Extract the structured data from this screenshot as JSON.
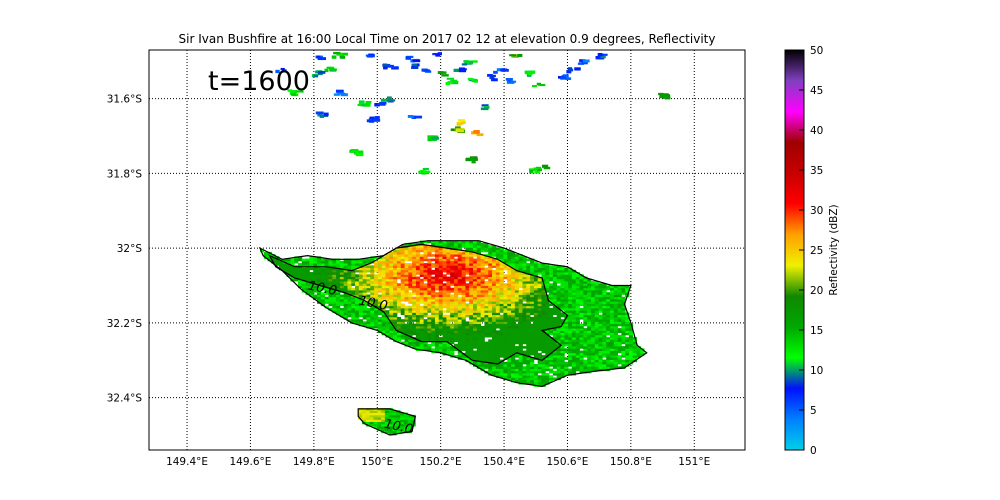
{
  "chart_data": {
    "type": "heatmap",
    "title": "Sir Ivan Bushfire at 16:00 Local Time on 2017 02 12 at elevation 0.9 degrees, Reflectivity",
    "annotation": "t=1600",
    "x_axis": {
      "range": [
        149.28,
        151.16
      ],
      "ticks": [
        149.4,
        149.6,
        149.8,
        150.0,
        150.2,
        150.4,
        150.6,
        150.8,
        151.0
      ],
      "tick_labels": [
        "149.4°E",
        "149.6°E",
        "149.8°E",
        "150°E",
        "150.2°E",
        "150.4°E",
        "150.6°E",
        "150.8°E",
        "151°E"
      ]
    },
    "y_axis": {
      "range": [
        -32.54,
        -31.47
      ],
      "ticks": [
        -31.6,
        -31.8,
        -32.0,
        -32.2,
        -32.4
      ],
      "tick_labels": [
        "31.6°S",
        "31.8°S",
        "32°S",
        "32.2°S",
        "32.4°S"
      ]
    },
    "grid": true,
    "colorbar": {
      "label": "Reflectivity (dBZ)",
      "range": [
        0,
        50
      ],
      "ticks": [
        0,
        5,
        10,
        15,
        20,
        25,
        30,
        35,
        40,
        45,
        50
      ],
      "tick_labels": [
        "0",
        "5",
        "10",
        "15",
        "20",
        "25",
        "30",
        "35",
        "40",
        "45",
        "50"
      ],
      "colors": [
        "#00d0e8",
        "#0080ff",
        "#0010ff",
        "#00ff00",
        "#00a800",
        "#108800",
        "#f0f000",
        "#ffa000",
        "#ff0000",
        "#c80000",
        "#a00000",
        "#ff00ff",
        "#8040c0",
        "#000000"
      ]
    },
    "contour_labels": [
      {
        "text": "10.0",
        "lon": 149.78,
        "lat": -32.11
      },
      {
        "text": "10.0",
        "lon": 149.94,
        "lat": -32.15
      },
      {
        "text": "10.0",
        "lon": 150.02,
        "lat": -32.48
      }
    ],
    "main_plume": {
      "outline": [
        [
          149.63,
          -32.0
        ],
        [
          149.7,
          -32.03
        ],
        [
          149.78,
          -32.02
        ],
        [
          149.86,
          -32.03
        ],
        [
          149.94,
          -32.03
        ],
        [
          150.02,
          -32.02
        ],
        [
          150.08,
          -31.99
        ],
        [
          150.16,
          -31.98
        ],
        [
          150.24,
          -31.98
        ],
        [
          150.32,
          -31.98
        ],
        [
          150.4,
          -32.0
        ],
        [
          150.46,
          -32.02
        ],
        [
          150.52,
          -32.04
        ],
        [
          150.6,
          -32.05
        ],
        [
          150.66,
          -32.08
        ],
        [
          150.74,
          -32.1
        ],
        [
          150.8,
          -32.1
        ],
        [
          150.78,
          -32.15
        ],
        [
          150.8,
          -32.2
        ],
        [
          150.82,
          -32.26
        ],
        [
          150.85,
          -32.28
        ],
        [
          150.78,
          -32.32
        ],
        [
          150.68,
          -32.33
        ],
        [
          150.6,
          -32.34
        ],
        [
          150.52,
          -32.37
        ],
        [
          150.44,
          -32.36
        ],
        [
          150.36,
          -32.34
        ],
        [
          150.28,
          -32.3
        ],
        [
          150.2,
          -32.28
        ],
        [
          150.12,
          -32.27
        ],
        [
          150.06,
          -32.25
        ],
        [
          150.0,
          -32.22
        ],
        [
          149.92,
          -32.2
        ],
        [
          149.84,
          -32.16
        ],
        [
          149.76,
          -32.11
        ],
        [
          149.7,
          -32.06
        ],
        [
          149.64,
          -32.02
        ]
      ],
      "inner_contour": [
        [
          149.66,
          -32.02
        ],
        [
          149.74,
          -32.05
        ],
        [
          149.84,
          -32.05
        ],
        [
          149.92,
          -32.06
        ],
        [
          149.98,
          -32.04
        ],
        [
          150.06,
          -32.0
        ],
        [
          150.14,
          -31.99
        ],
        [
          150.22,
          -32.0
        ],
        [
          150.3,
          -32.01
        ],
        [
          150.38,
          -32.03
        ],
        [
          150.44,
          -32.06
        ],
        [
          150.52,
          -32.08
        ],
        [
          150.54,
          -32.14
        ],
        [
          150.6,
          -32.18
        ],
        [
          150.58,
          -32.21
        ],
        [
          150.52,
          -32.22
        ],
        [
          150.58,
          -32.26
        ],
        [
          150.52,
          -32.3
        ],
        [
          150.44,
          -32.28
        ],
        [
          150.38,
          -32.31
        ],
        [
          150.3,
          -32.3
        ],
        [
          150.22,
          -32.25
        ],
        [
          150.14,
          -32.25
        ],
        [
          150.06,
          -32.22
        ],
        [
          150.02,
          -32.17
        ],
        [
          149.96,
          -32.14
        ],
        [
          149.9,
          -32.12
        ],
        [
          149.82,
          -32.1
        ],
        [
          149.74,
          -32.08
        ],
        [
          149.68,
          -32.05
        ]
      ],
      "core": {
        "lon": 150.22,
        "lat": -32.07,
        "peak_dbz": 33
      }
    },
    "small_cell": {
      "outline": [
        [
          149.94,
          -32.43
        ],
        [
          150.04,
          -32.43
        ],
        [
          150.12,
          -32.45
        ],
        [
          150.11,
          -32.49
        ],
        [
          150.04,
          -32.5
        ],
        [
          149.96,
          -32.47
        ],
        [
          149.94,
          -32.45
        ]
      ]
    },
    "scattered_echoes": [
      [
        149.82,
        -31.49,
        6
      ],
      [
        149.84,
        -31.52,
        12
      ],
      [
        149.87,
        -31.48,
        14
      ],
      [
        149.8,
        -31.53,
        10
      ],
      [
        149.69,
        -31.52,
        7
      ],
      [
        149.97,
        -31.48,
        6
      ],
      [
        150.03,
        -31.51,
        7
      ],
      [
        150.1,
        -31.49,
        6
      ],
      [
        150.12,
        -31.51,
        8
      ],
      [
        150.15,
        -31.52,
        5
      ],
      [
        150.18,
        -31.48,
        6
      ],
      [
        150.2,
        -31.53,
        17
      ],
      [
        150.23,
        -31.55,
        12
      ],
      [
        150.25,
        -31.52,
        9
      ],
      [
        150.28,
        -31.5,
        11
      ],
      [
        150.3,
        -31.55,
        10
      ],
      [
        150.36,
        -31.54,
        7
      ],
      [
        150.38,
        -31.52,
        5
      ],
      [
        150.41,
        -31.55,
        6
      ],
      [
        150.43,
        -31.48,
        19
      ],
      [
        150.47,
        -31.53,
        12
      ],
      [
        150.5,
        -31.56,
        14
      ],
      [
        150.58,
        -31.54,
        6
      ],
      [
        150.61,
        -31.52,
        8
      ],
      [
        150.64,
        -31.5,
        5
      ],
      [
        150.7,
        -31.48,
        8
      ],
      [
        150.9,
        -31.59,
        18
      ],
      [
        150.0,
        -31.61,
        7
      ],
      [
        150.02,
        -31.6,
        9
      ],
      [
        149.95,
        -31.61,
        12
      ],
      [
        149.98,
        -31.65,
        6
      ],
      [
        149.82,
        -31.64,
        8
      ],
      [
        149.87,
        -31.58,
        5
      ],
      [
        150.25,
        -31.66,
        24
      ],
      [
        150.24,
        -31.68,
        21
      ],
      [
        150.33,
        -31.62,
        10
      ],
      [
        150.3,
        -31.69,
        26
      ],
      [
        150.17,
        -31.7,
        12
      ],
      [
        150.11,
        -31.64,
        5
      ],
      [
        149.92,
        -31.74,
        14
      ],
      [
        150.51,
        -31.78,
        16
      ],
      [
        150.49,
        -31.79,
        13
      ],
      [
        150.29,
        -31.76,
        17
      ],
      [
        150.14,
        -31.79,
        12
      ],
      [
        149.73,
        -31.58,
        12
      ]
    ]
  }
}
